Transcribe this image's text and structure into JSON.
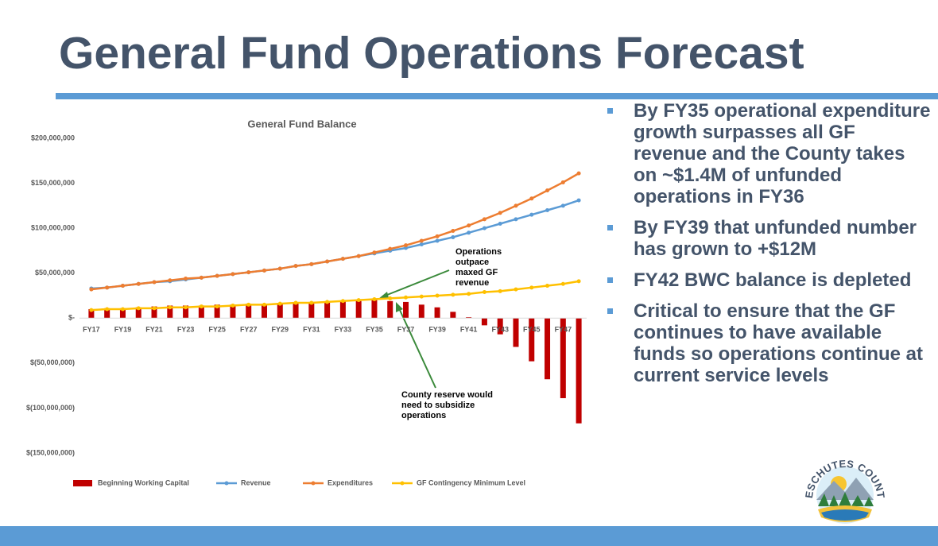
{
  "header": {
    "title": "General Fund Operations Forecast"
  },
  "bullets": [
    "By FY35 operational expenditure growth surpasses all GF revenue and the County takes on ~$1.4M of unfunded operations in FY36",
    "By FY39 that unfunded number has grown to +$12M",
    "FY42 BWC balance is depleted",
    "Critical to ensure that the GF continues to have available funds so operations continue at current service levels"
  ],
  "logo": {
    "text": "DESCHUTES COUNTY"
  },
  "chart_data": {
    "type": "bar_line",
    "title": "General Fund Balance",
    "categories": [
      "FY17",
      null,
      "FY19",
      null,
      "FY21",
      null,
      "FY23",
      null,
      "FY25",
      null,
      "FY27",
      null,
      "FY29",
      null,
      "FY31",
      null,
      "FY33",
      null,
      "FY35",
      null,
      "FY37",
      null,
      "FY39",
      null,
      "FY41",
      null,
      "FY43",
      null,
      "FY45",
      null,
      "FY47",
      null
    ],
    "series": [
      {
        "name": "Beginning Working Capital",
        "type": "bar",
        "color": "#c00000",
        "values": [
          10000000,
          11000000,
          11000000,
          12000000,
          13000000,
          14000000,
          14000000,
          14000000,
          15000000,
          15000000,
          16000000,
          16000000,
          17000000,
          17000000,
          18000000,
          18000000,
          19000000,
          19000000,
          20000000,
          19000000,
          18000000,
          15000000,
          12000000,
          7000000,
          1000000,
          -8000000,
          -18000000,
          -32000000,
          -48000000,
          -68000000,
          -89000000,
          -117000000
        ]
      },
      {
        "name": "Revenue",
        "type": "line",
        "color": "#5b9bd5",
        "values": [
          33000000,
          34000000,
          36000000,
          38000000,
          40000000,
          41000000,
          43000000,
          45000000,
          47000000,
          49000000,
          51000000,
          53000000,
          55000000,
          58000000,
          60000000,
          63000000,
          66000000,
          69000000,
          72000000,
          75000000,
          78000000,
          82000000,
          86000000,
          90000000,
          95000000,
          100000000,
          105000000,
          110000000,
          115000000,
          120000000,
          125000000,
          131000000
        ]
      },
      {
        "name": "Expenditures",
        "type": "line",
        "color": "#ed7d31",
        "values": [
          32000000,
          34000000,
          36000000,
          38000000,
          40000000,
          42000000,
          44000000,
          45000000,
          47000000,
          49000000,
          51000000,
          53000000,
          55000000,
          58000000,
          60000000,
          63000000,
          66000000,
          69000000,
          73000000,
          77000000,
          81000000,
          86000000,
          91000000,
          97000000,
          103000000,
          110000000,
          117000000,
          125000000,
          133000000,
          142000000,
          151000000,
          161000000
        ]
      },
      {
        "name": "GF Contingency Minimum Level",
        "type": "line",
        "color": "#ffc000",
        "values": [
          9000000,
          10000000,
          10000000,
          11000000,
          11000000,
          12000000,
          12000000,
          13000000,
          13000000,
          14000000,
          15000000,
          15000000,
          16000000,
          17000000,
          17000000,
          18000000,
          19000000,
          20000000,
          21000000,
          22000000,
          23000000,
          24000000,
          25000000,
          26000000,
          27000000,
          29000000,
          30000000,
          32000000,
          34000000,
          36000000,
          38000000,
          41000000
        ]
      }
    ],
    "ylim": [
      -150000000,
      200000000
    ],
    "yticks": [
      {
        "value": -150000000,
        "label": "$(150,000,000)"
      },
      {
        "value": -100000000,
        "label": "$(100,000,000)"
      },
      {
        "value": -50000000,
        "label": "$(50,000,000)"
      },
      {
        "value": 0,
        "label": "$-"
      },
      {
        "value": 50000000,
        "label": "$50,000,000"
      },
      {
        "value": 100000000,
        "label": "$100,000,000"
      },
      {
        "value": 150000000,
        "label": "$150,000,000"
      },
      {
        "value": 200000000,
        "label": "$200,000,000"
      }
    ],
    "grid": false,
    "legend": "bottom",
    "annotations": [
      "Operations outpace maxed GF revenue",
      "County reserve would need to subsidize operations"
    ]
  }
}
